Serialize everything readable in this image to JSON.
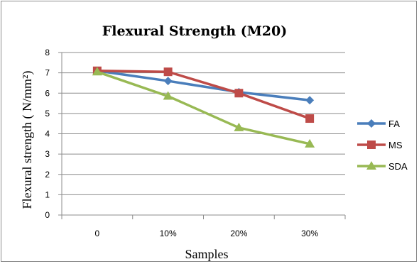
{
  "chart_data": {
    "type": "line",
    "title": "Flexural Strength  (M20)",
    "xlabel": "Samples",
    "ylabel": "Flexural strength ( N/mm²)",
    "categories": [
      "0",
      "10%",
      "20%",
      "30%"
    ],
    "ylim": [
      0,
      8
    ],
    "yticks": [
      "0",
      "1",
      "2",
      "3",
      "4",
      "5",
      "6",
      "7",
      "8"
    ],
    "grid": true,
    "legend_position": "right",
    "series": [
      {
        "name": "FA",
        "color": "#4a7ebb",
        "marker": "diamond",
        "values": [
          7.1,
          6.6,
          6.05,
          5.65
        ]
      },
      {
        "name": "MS",
        "color": "#be4b48",
        "marker": "square",
        "values": [
          7.1,
          7.05,
          6.0,
          4.75
        ]
      },
      {
        "name": "SDA",
        "color": "#98b954",
        "marker": "triangle",
        "values": [
          7.05,
          5.85,
          4.3,
          3.5
        ]
      }
    ]
  }
}
